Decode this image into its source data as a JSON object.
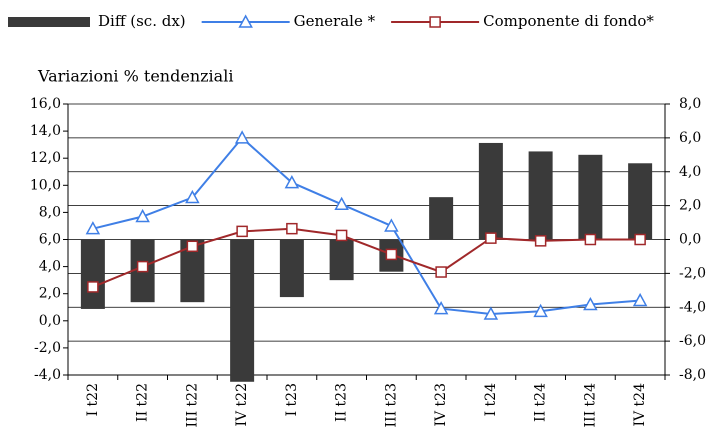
{
  "chart_data": {
    "type": "bar_line",
    "y_axis_label": "Variazioni % tendenziali",
    "categories": [
      "I t22",
      "II t22",
      "III t22",
      "IV t22",
      "I t23",
      "II t23",
      "III t23",
      "IV t23",
      "I t24",
      "II t24",
      "III t24",
      "IV t24"
    ],
    "series": [
      {
        "name": "Diff (sc. dx)",
        "type": "bar",
        "axis": "y2",
        "color": "#3a3a3a",
        "values": [
          -4.1,
          -3.7,
          -3.7,
          -8.4,
          -3.4,
          -2.4,
          -1.9,
          2.5,
          5.7,
          5.2,
          5.0,
          4.5
        ]
      },
      {
        "name": "Generale *",
        "type": "line",
        "marker": "triangle",
        "color": "#3f7fe6",
        "values": [
          6.8,
          7.7,
          9.1,
          13.5,
          10.2,
          8.6,
          7.0,
          0.9,
          0.5,
          0.7,
          1.2,
          1.5
        ]
      },
      {
        "name": "Componente di fondo*",
        "type": "line",
        "marker": "square",
        "color": "#a0282a",
        "values": [
          2.5,
          4.0,
          5.5,
          6.6,
          6.8,
          6.3,
          4.9,
          3.6,
          6.1,
          5.9,
          6.0,
          6.0
        ]
      }
    ],
    "ylim": [
      -4,
      16
    ],
    "yticks": [
      {
        "value": -4,
        "label": "-4,0"
      },
      {
        "value": -2,
        "label": "-2,0"
      },
      {
        "value": 0,
        "label": "0,0"
      },
      {
        "value": 2,
        "label": "2,0"
      },
      {
        "value": 4,
        "label": "4,0"
      },
      {
        "value": 6,
        "label": "6,0"
      },
      {
        "value": 8,
        "label": "8,0"
      },
      {
        "value": 10,
        "label": "10,0"
      },
      {
        "value": 12,
        "label": "12,0"
      },
      {
        "value": 14,
        "label": "14,0"
      },
      {
        "value": 16,
        "label": "16,0"
      }
    ],
    "y2lim": [
      -8,
      8
    ],
    "y2ticks": [
      {
        "value": -8,
        "label": "-8,0"
      },
      {
        "value": -6,
        "label": "-6,0"
      },
      {
        "value": -4,
        "label": "-4,0"
      },
      {
        "value": -2,
        "label": "-2,0"
      },
      {
        "value": 0,
        "label": "0,0"
      },
      {
        "value": 2,
        "label": "2,0"
      },
      {
        "value": 4,
        "label": "4,0"
      },
      {
        "value": 6,
        "label": "6,0"
      },
      {
        "value": 8,
        "label": "8,0"
      }
    ],
    "grid": true,
    "legend": "top"
  }
}
